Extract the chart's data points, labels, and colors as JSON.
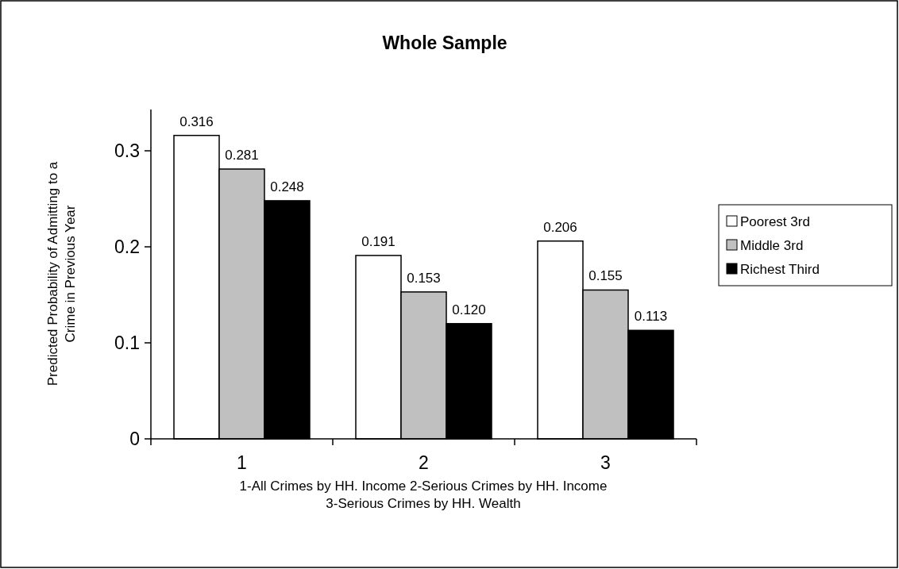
{
  "chart_data": {
    "type": "bar",
    "title": "Whole Sample",
    "ylabel": "Predicted Probability of Admitting to a\nCrime in Previous Year",
    "xlabel": "1-All Crimes by HH. Income   2-Serious Crimes by HH. Income\n3-Serious Crimes by HH. Wealth",
    "categories": [
      "1",
      "2",
      "3"
    ],
    "series": [
      {
        "name": "Poorest 3rd",
        "color": "#ffffff",
        "values": [
          0.316,
          0.191,
          0.206
        ],
        "value_labels": [
          "0.316",
          "0.191",
          "0.206"
        ]
      },
      {
        "name": "Middle 3rd",
        "color": "#c0c0c0",
        "values": [
          0.281,
          0.153,
          0.155
        ],
        "value_labels": [
          "0.281",
          "0.153",
          "0.155"
        ]
      },
      {
        "name": "Richest Third",
        "color": "#000000",
        "values": [
          0.248,
          0.12,
          0.113
        ],
        "value_labels": [
          "0.248",
          "0.120",
          "0.113"
        ]
      }
    ],
    "ylim": [
      0,
      0.343
    ],
    "yticks": [
      0,
      0.1,
      0.2,
      0.3
    ],
    "grid": false,
    "legend": "right"
  }
}
